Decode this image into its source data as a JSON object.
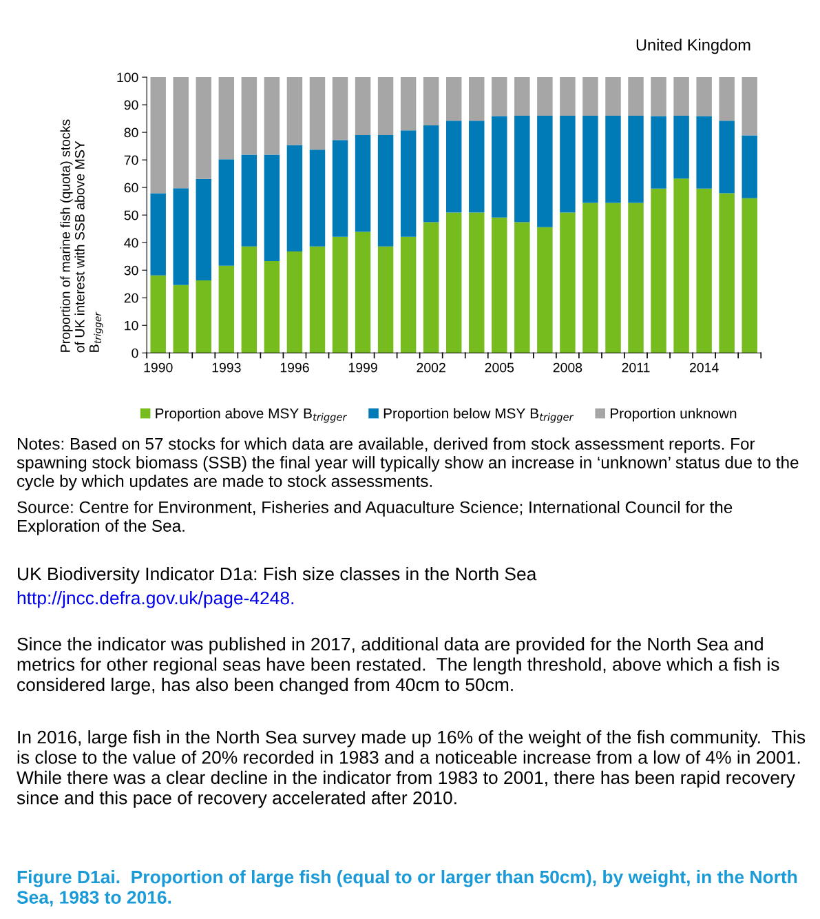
{
  "chart_data": {
    "type": "bar",
    "stacked": true,
    "title": "United Kingdom",
    "ylabel": "Proportion of marine fish (quota) stocks\nof UK interest with SSB above MSY\nB$_{trigger}$",
    "categories": [
      "1990",
      null,
      null,
      "1993",
      null,
      null,
      "1996",
      null,
      null,
      "1999",
      null,
      null,
      "2002",
      null,
      null,
      "2005",
      null,
      null,
      "2008",
      null,
      null,
      "2011",
      null,
      null,
      "2014",
      null,
      null
    ],
    "series": [
      {
        "name": "Proportion above MSY B$_{trigger}$",
        "color": "#77bc1f",
        "values": [
          28.1,
          24.6,
          26.3,
          31.6,
          38.6,
          33.3,
          36.8,
          38.6,
          42.1,
          43.9,
          38.6,
          42.1,
          47.4,
          50.9,
          50.9,
          49.1,
          47.4,
          45.6,
          50.9,
          54.4,
          54.4,
          54.4,
          59.6,
          63.2,
          59.6,
          57.9,
          56.1
        ]
      },
      {
        "name": "Proportion below MSY B$_{trigger}$",
        "color": "#007bb8",
        "values": [
          29.8,
          35.1,
          36.8,
          38.6,
          33.3,
          38.6,
          38.6,
          35.1,
          35.1,
          35.1,
          40.4,
          38.6,
          35.1,
          33.3,
          33.3,
          36.8,
          38.6,
          40.4,
          35.1,
          31.6,
          31.6,
          31.6,
          26.3,
          22.8,
          26.3,
          26.3,
          22.8
        ]
      },
      {
        "name": "Proportion unknown",
        "color": "#a6a6a6",
        "values": [
          42.1,
          40.3,
          36.9,
          29.8,
          28.1,
          28.1,
          24.6,
          26.3,
          22.8,
          21.0,
          21.0,
          19.3,
          17.5,
          15.8,
          15.8,
          14.1,
          14.0,
          14.0,
          14.0,
          14.0,
          14.0,
          14.0,
          14.1,
          14.0,
          14.1,
          15.8,
          21.1
        ]
      }
    ],
    "ylim": [
      0,
      100
    ],
    "yticks": [
      0,
      10,
      20,
      30,
      40,
      50,
      60,
      70,
      80,
      90,
      100
    ],
    "grid": false,
    "legend": "bottom",
    "annotations": [
      "Notes: Based on 57 stocks for which data are available, derived from stock assessment reports. For spawning stock biomass (SSB) the final year will typically show an increase in ‘unknown’ status due to the cycle by which updates are made to stock assessments.",
      "Source: Centre for Environment, Fisheries and Aquaculture Science; International Council for the Exploration of the Sea.",
      "UK Biodiversity Indicator D1a: Fish size classes in the North Sea",
      "http://jncc.defra.gov.uk/page-4248.",
      "Since the indicator was published in 2017, additional data are provided for the North Sea and metrics for other regional seas have been restated.  The length threshold, above which a fish is considered large, has also been changed from 40cm to 50cm.",
      "In 2016, large fish in the North Sea survey made up 16% of the weight of the fish community.  This is close to the value of 20% recorded in 1983 and a noticeable increase from a low of 4% in 2001.  While there was a clear decline in the indicator from 1983 to 2001, there has been rapid recovery since and this pace of recovery accelerated after 2010.",
      "Figure D1ai.  Proportion of large fish (equal to or larger than 50cm), by weight, in the North Sea, 1983 to 2016."
    ]
  }
}
